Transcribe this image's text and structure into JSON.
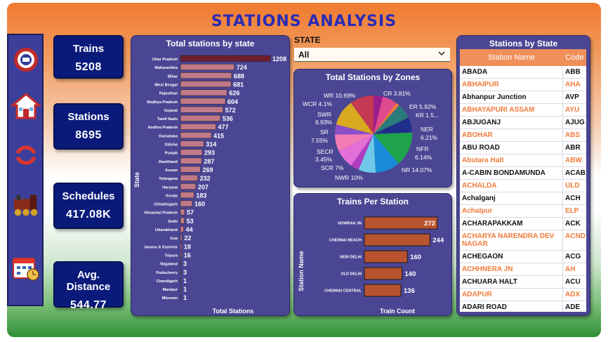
{
  "title": "STATIONS ANALYSIS",
  "sidebar": {
    "icons": [
      "railway-logo-icon",
      "home-icon",
      "refresh-icon",
      "train-icon",
      "calendar-icon"
    ]
  },
  "cards": [
    {
      "label": "Trains",
      "value": "5208"
    },
    {
      "label": "Stations",
      "value": "8695"
    },
    {
      "label": "Schedules",
      "value": "417.08K"
    },
    {
      "label": "Avg. Distance",
      "value": "544.77"
    }
  ],
  "filter": {
    "label": "STATE",
    "value": "All"
  },
  "chart_data": [
    {
      "type": "bar",
      "orientation": "horizontal",
      "title": "Total stations by state",
      "xlabel": "Total Stations",
      "ylabel": "State",
      "categories": [
        "Uttar Pradesh",
        "Maharashtra",
        "Bihar",
        "West Bengal",
        "Rajasthan",
        "Madhya Pradesh",
        "Gujarat",
        "Tamil Nadu",
        "Andhra Pradesh",
        "Karnataka",
        "Odisha",
        "Punjab",
        "Jharkhand",
        "Assam",
        "Telangana",
        "Haryana",
        "Kerala",
        "Chhattisgarh",
        "Himachal Pradesh",
        "Delhi",
        "Uttarakhand",
        "Goa",
        "Jammu & Kashmir",
        "Tripura",
        "Nagaland",
        "Puducherry",
        "Chandigarh",
        "Manipur",
        "Mizoram"
      ],
      "values": [
        1208,
        724,
        688,
        681,
        626,
        604,
        572,
        536,
        477,
        415,
        314,
        293,
        287,
        269,
        232,
        207,
        183,
        160,
        57,
        53,
        44,
        22,
        18,
        16,
        3,
        3,
        1,
        1,
        1
      ],
      "colors": {
        "top": "#6e1f2e",
        "bar": "#c07a87"
      }
    },
    {
      "type": "pie",
      "title": "Total Stations by Zones",
      "slices": [
        {
          "label": "CR",
          "pct": "3.81%",
          "value": 3.81,
          "color": "#9b1d8a"
        },
        {
          "label": "ER",
          "pct": "5.92%",
          "value": 5.92,
          "color": "#e04a8c"
        },
        {
          "label": "KR",
          "pct": "1.5...",
          "value": 1.5,
          "color": "#f07a3a"
        },
        {
          "label": "NER",
          "pct": "6.21%",
          "value": 6.21,
          "color": "#2a7c7a"
        },
        {
          "label": "NFR",
          "pct": "6.14%",
          "value": 6.14,
          "color": "#1f2e8a"
        },
        {
          "label": "NR",
          "pct": "14.07%",
          "value": 14.07,
          "color": "#1fa34a"
        },
        {
          "label": "NWR",
          "pct": "10%",
          "value": 10.0,
          "color": "#1a8bd6"
        },
        {
          "label": "SCR",
          "pct": "7%",
          "value": 7.0,
          "color": "#6fc8e8"
        },
        {
          "label": "SECR",
          "pct": "3.45%",
          "value": 3.45,
          "color": "#b03fc0"
        },
        {
          "label": "SR",
          "pct": "7.55%",
          "value": 7.55,
          "color": "#e46fd8"
        },
        {
          "label": "SWR",
          "pct": "6.93%",
          "value": 6.93,
          "color": "#f27bb6"
        },
        {
          "label": "WCR",
          "pct": "4.1%",
          "value": 4.1,
          "color": "#8a4fc8"
        },
        {
          "label": "WR",
          "pct": "10.69%",
          "value": 10.69,
          "color": "#d9a91f"
        },
        {
          "label": "",
          "pct": "",
          "value": 9.63,
          "color": "#c33a52"
        }
      ]
    },
    {
      "type": "bar",
      "orientation": "horizontal",
      "title": "Trains Per Station",
      "xlabel": "Train Count",
      "ylabel": "Station Name",
      "categories": [
        "HOWRAH JN",
        "CHENNAI BEACH",
        "NEW DELHI",
        "OLD DELHI",
        "CHENNAI CENTRAL"
      ],
      "values": [
        272,
        244,
        160,
        140,
        136
      ],
      "colors": {
        "bar": "#b8532f",
        "border": "#1a1a1a"
      }
    }
  ],
  "stations_table": {
    "title": "Stations by State",
    "columns": [
      "Station Name",
      "Code"
    ],
    "rows": [
      {
        "name": "ABADA",
        "code": "ABB"
      },
      {
        "name": "ABHAIPUR",
        "code": "AHA"
      },
      {
        "name": "Abhanpur Junction",
        "code": "AVP"
      },
      {
        "name": "ABHAYAPURI ASSAM",
        "code": "AYU"
      },
      {
        "name": "ABJUGANJ",
        "code": "AJUG"
      },
      {
        "name": "ABOHAR",
        "code": "ABS"
      },
      {
        "name": "ABU ROAD",
        "code": "ABR"
      },
      {
        "name": "Abutara Halt",
        "code": "ABW"
      },
      {
        "name": "A-CABIN BONDAMUNDA",
        "code": "ACAB"
      },
      {
        "name": "ACHALDA",
        "code": "ULD"
      },
      {
        "name": "Achalganj",
        "code": "ACH"
      },
      {
        "name": "Achalpur",
        "code": "ELP"
      },
      {
        "name": "ACHARAPAKKAM",
        "code": "ACK"
      },
      {
        "name": "ACHARYA NARENDRA DEV NAGAR",
        "code": "ACND"
      },
      {
        "name": "ACHEGAON",
        "code": "ACG"
      },
      {
        "name": "ACHHNERA JN",
        "code": "AH"
      },
      {
        "name": "ACHUARA HALT",
        "code": "ACU"
      },
      {
        "name": "ADAPUR",
        "code": "ADX"
      },
      {
        "name": "ADARI ROAD",
        "code": "ADE"
      }
    ]
  }
}
